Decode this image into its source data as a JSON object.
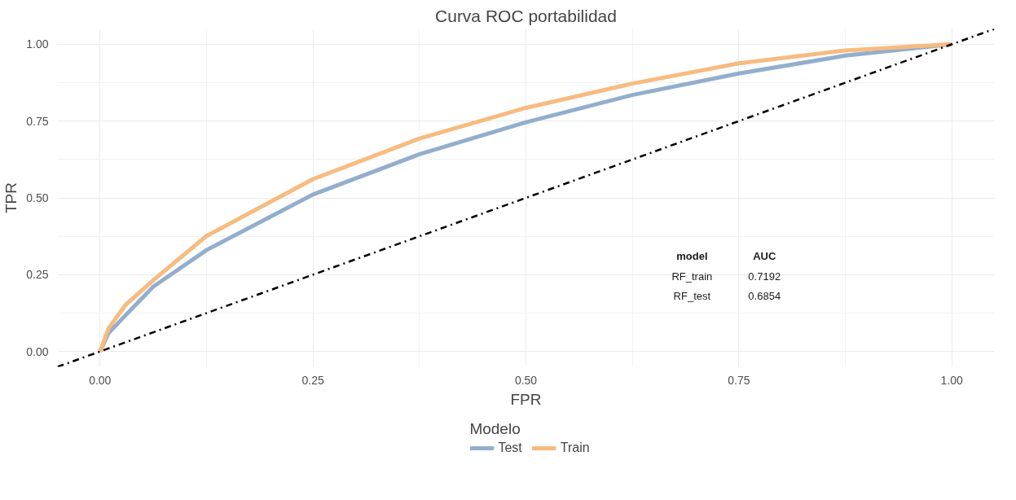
{
  "chart_data": {
    "type": "line",
    "title": "Curva ROC portabilidad",
    "xlabel": "FPR",
    "ylabel": "TPR",
    "legend_title": "Modelo",
    "xlim": [
      -0.05,
      1.05
    ],
    "ylim": [
      -0.05,
      1.05
    ],
    "xticks": [
      {
        "value": 0,
        "label": "0.00"
      },
      {
        "value": 0.25,
        "label": "0.25"
      },
      {
        "value": 0.5,
        "label": "0.50"
      },
      {
        "value": 0.75,
        "label": "0.75"
      },
      {
        "value": 1,
        "label": "1.00"
      }
    ],
    "yticks": [
      {
        "value": 0,
        "label": "0.00"
      },
      {
        "value": 0.25,
        "label": "0.25"
      },
      {
        "value": 0.5,
        "label": "0.50"
      },
      {
        "value": 0.75,
        "label": "0.75"
      },
      {
        "value": 1,
        "label": "1.00"
      }
    ],
    "grid": true,
    "legend": "bottom",
    "marker": "none",
    "series": [
      {
        "name": "Test",
        "color": "#93aecd",
        "x": [
          0,
          0.01,
          0.03,
          0.0625,
          0.125,
          0.25,
          0.375,
          0.5,
          0.625,
          0.75,
          0.875,
          1
        ],
        "values": [
          0,
          0.06,
          0.118,
          0.211,
          0.33,
          0.511,
          0.642,
          0.746,
          0.835,
          0.905,
          0.963,
          1
        ]
      },
      {
        "name": "Train",
        "color": "#f7bb80",
        "x": [
          0,
          0.01,
          0.03,
          0.0625,
          0.125,
          0.25,
          0.375,
          0.5,
          0.625,
          0.75,
          0.875,
          1
        ],
        "values": [
          0,
          0.075,
          0.152,
          0.232,
          0.376,
          0.561,
          0.693,
          0.793,
          0.872,
          0.938,
          0.98,
          1
        ]
      },
      {
        "type": "line",
        "color": "#000000",
        "line_style": "dashdot",
        "x": [
          -0.05,
          1.05
        ],
        "values": [
          -0.05,
          1.05
        ]
      }
    ],
    "annotations": [
      "model",
      "AUC",
      "RF_train",
      "0.7192",
      "RF_test",
      "0.6854"
    ]
  }
}
